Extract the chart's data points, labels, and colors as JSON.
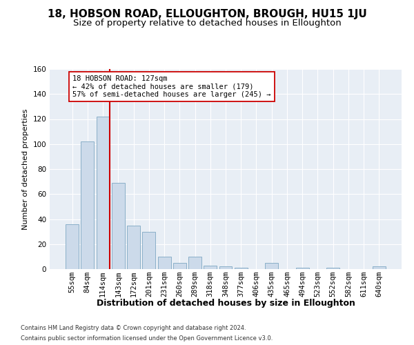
{
  "title": "18, HOBSON ROAD, ELLOUGHTON, BROUGH, HU15 1JU",
  "subtitle": "Size of property relative to detached houses in Elloughton",
  "xlabel": "Distribution of detached houses by size in Elloughton",
  "ylabel": "Number of detached properties",
  "categories": [
    "55sqm",
    "84sqm",
    "114sqm",
    "143sqm",
    "172sqm",
    "201sqm",
    "231sqm",
    "260sqm",
    "289sqm",
    "318sqm",
    "348sqm",
    "377sqm",
    "406sqm",
    "435sqm",
    "465sqm",
    "494sqm",
    "523sqm",
    "552sqm",
    "582sqm",
    "611sqm",
    "640sqm"
  ],
  "values": [
    36,
    102,
    122,
    69,
    35,
    30,
    10,
    5,
    10,
    3,
    2,
    1,
    0,
    5,
    0,
    1,
    0,
    1,
    0,
    0,
    2
  ],
  "bar_color": "#ccdaea",
  "bar_edge_color": "#8aafc8",
  "vline_color": "#cc0000",
  "vline_index": 2,
  "annotation_text": "18 HOBSON ROAD: 127sqm\n← 42% of detached houses are smaller (179)\n57% of semi-detached houses are larger (245) →",
  "annotation_box_color": "#ffffff",
  "annotation_box_edge": "#cc0000",
  "ylim": [
    0,
    160
  ],
  "yticks": [
    0,
    20,
    40,
    60,
    80,
    100,
    120,
    140,
    160
  ],
  "background_color": "#e8eef5",
  "footer_line1": "Contains HM Land Registry data © Crown copyright and database right 2024.",
  "footer_line2": "Contains public sector information licensed under the Open Government Licence v3.0.",
  "title_fontsize": 11,
  "subtitle_fontsize": 9.5,
  "xlabel_fontsize": 9,
  "ylabel_fontsize": 8,
  "tick_fontsize": 7.5,
  "annotation_fontsize": 7.5,
  "footer_fontsize": 6
}
